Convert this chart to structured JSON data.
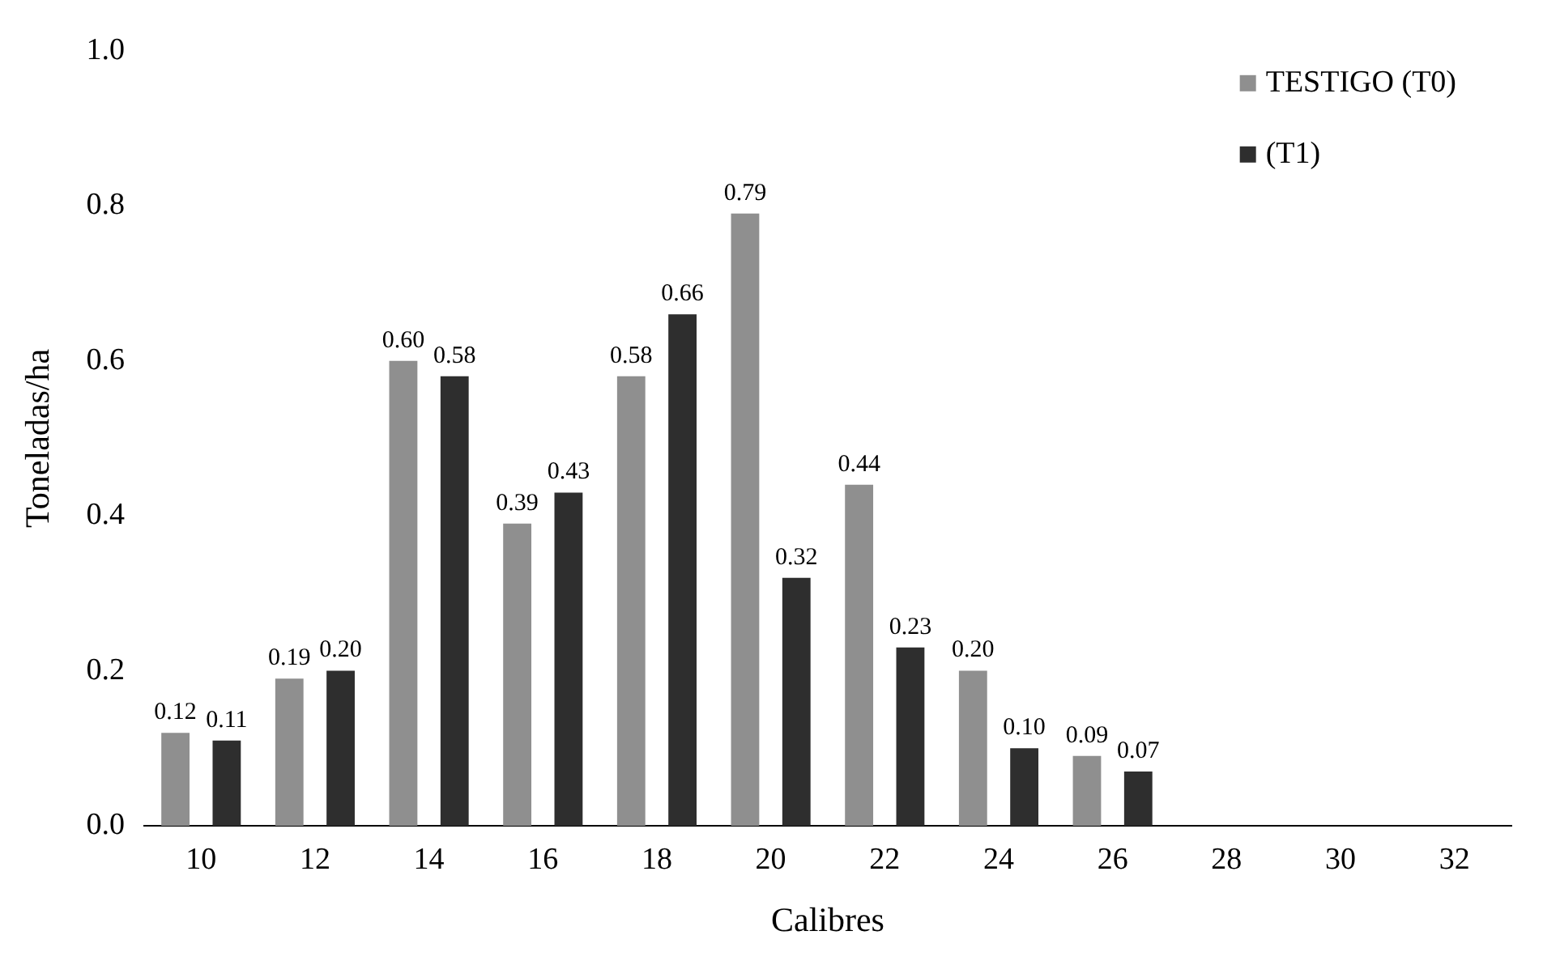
{
  "chart_data": {
    "type": "bar",
    "xlabel": "Calibres",
    "ylabel": "Toneladas/ha",
    "categories": [
      "10",
      "12",
      "14",
      "16",
      "18",
      "20",
      "22",
      "24",
      "26",
      "28",
      "30",
      "32"
    ],
    "series": [
      {
        "name": "TESTIGO (T0)",
        "color": "#8f8f8f",
        "values": [
          0.12,
          0.19,
          0.6,
          0.39,
          0.58,
          0.79,
          0.44,
          0.2,
          0.09,
          null,
          null,
          null
        ],
        "value_labels": [
          "0.12",
          "0.19",
          "0.60",
          "0.39",
          "0.58",
          "0.79",
          "0.44",
          "0.20",
          "0.09",
          null,
          null,
          null
        ]
      },
      {
        "name": "(T1)",
        "color": "#2e2e2e",
        "values": [
          0.11,
          0.2,
          0.58,
          0.43,
          0.66,
          0.32,
          0.23,
          0.1,
          0.07,
          null,
          null,
          null
        ],
        "value_labels": [
          "0.11",
          "0.20",
          "0.58",
          "0.43",
          "0.66",
          "0.32",
          "0.23",
          "0.10",
          "0.07",
          null,
          null,
          null
        ]
      }
    ],
    "ylim": [
      0,
      1
    ],
    "yticks": [
      {
        "value": 0,
        "label": "0.0"
      },
      {
        "value": 0.2,
        "label": "0.2"
      },
      {
        "value": 0.4,
        "label": "0.4"
      },
      {
        "value": 0.6,
        "label": "0.6"
      },
      {
        "value": 0.8,
        "label": "0.8"
      },
      {
        "value": 1,
        "label": "1.0"
      }
    ],
    "grid": false,
    "legend": "top right"
  }
}
